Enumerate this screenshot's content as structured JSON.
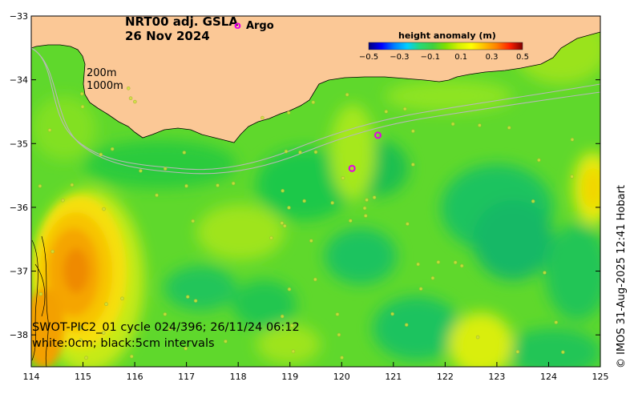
{
  "title": {
    "line1": "NRT00 adj. GSLA",
    "line2": "26 Nov 2024"
  },
  "argo_legend": {
    "symbol": "o",
    "label": "Argo"
  },
  "depth_labels": {
    "shallow": "200m",
    "deep": "1000m"
  },
  "colorbar": {
    "title": "height anomaly (m)",
    "ticks": [
      "−0.5",
      "−0.3",
      "−0.1",
      "0.1",
      "0.3",
      "0.5"
    ],
    "colors": [
      "#00007f",
      "#0000ff",
      "#007fff",
      "#00cfff",
      "#27d975",
      "#3fd03f",
      "#7fe000",
      "#d4f000",
      "#ffff00",
      "#ffbf00",
      "#ff7f00",
      "#ff2000",
      "#7f0000"
    ]
  },
  "swot_text": {
    "line1": "SWOT-PIC2_01 cycle 024/396; 26/11/24 06:12",
    "line2": "white:0cm; black:5cm intervals"
  },
  "credit": "© IMOS 31-Aug-2025 12:41 Hobart",
  "axes": {
    "x_ticks": [
      "114",
      "115",
      "116",
      "117",
      "118",
      "119",
      "120",
      "121",
      "122",
      "123",
      "124",
      "125"
    ],
    "y_ticks": [
      "−33",
      "−34",
      "−35",
      "−36",
      "−37",
      "−38"
    ],
    "lon_range": [
      114,
      125
    ],
    "lat_range": [
      -33,
      -38.5
    ]
  },
  "argo_floats": [
    {
      "lon": 120.7,
      "lat": -34.87
    },
    {
      "lon": 120.2,
      "lat": -35.39
    }
  ],
  "colors": {
    "land": "#fbc896",
    "ocean_base": "#6fd83a",
    "argo": "#e600e6"
  }
}
